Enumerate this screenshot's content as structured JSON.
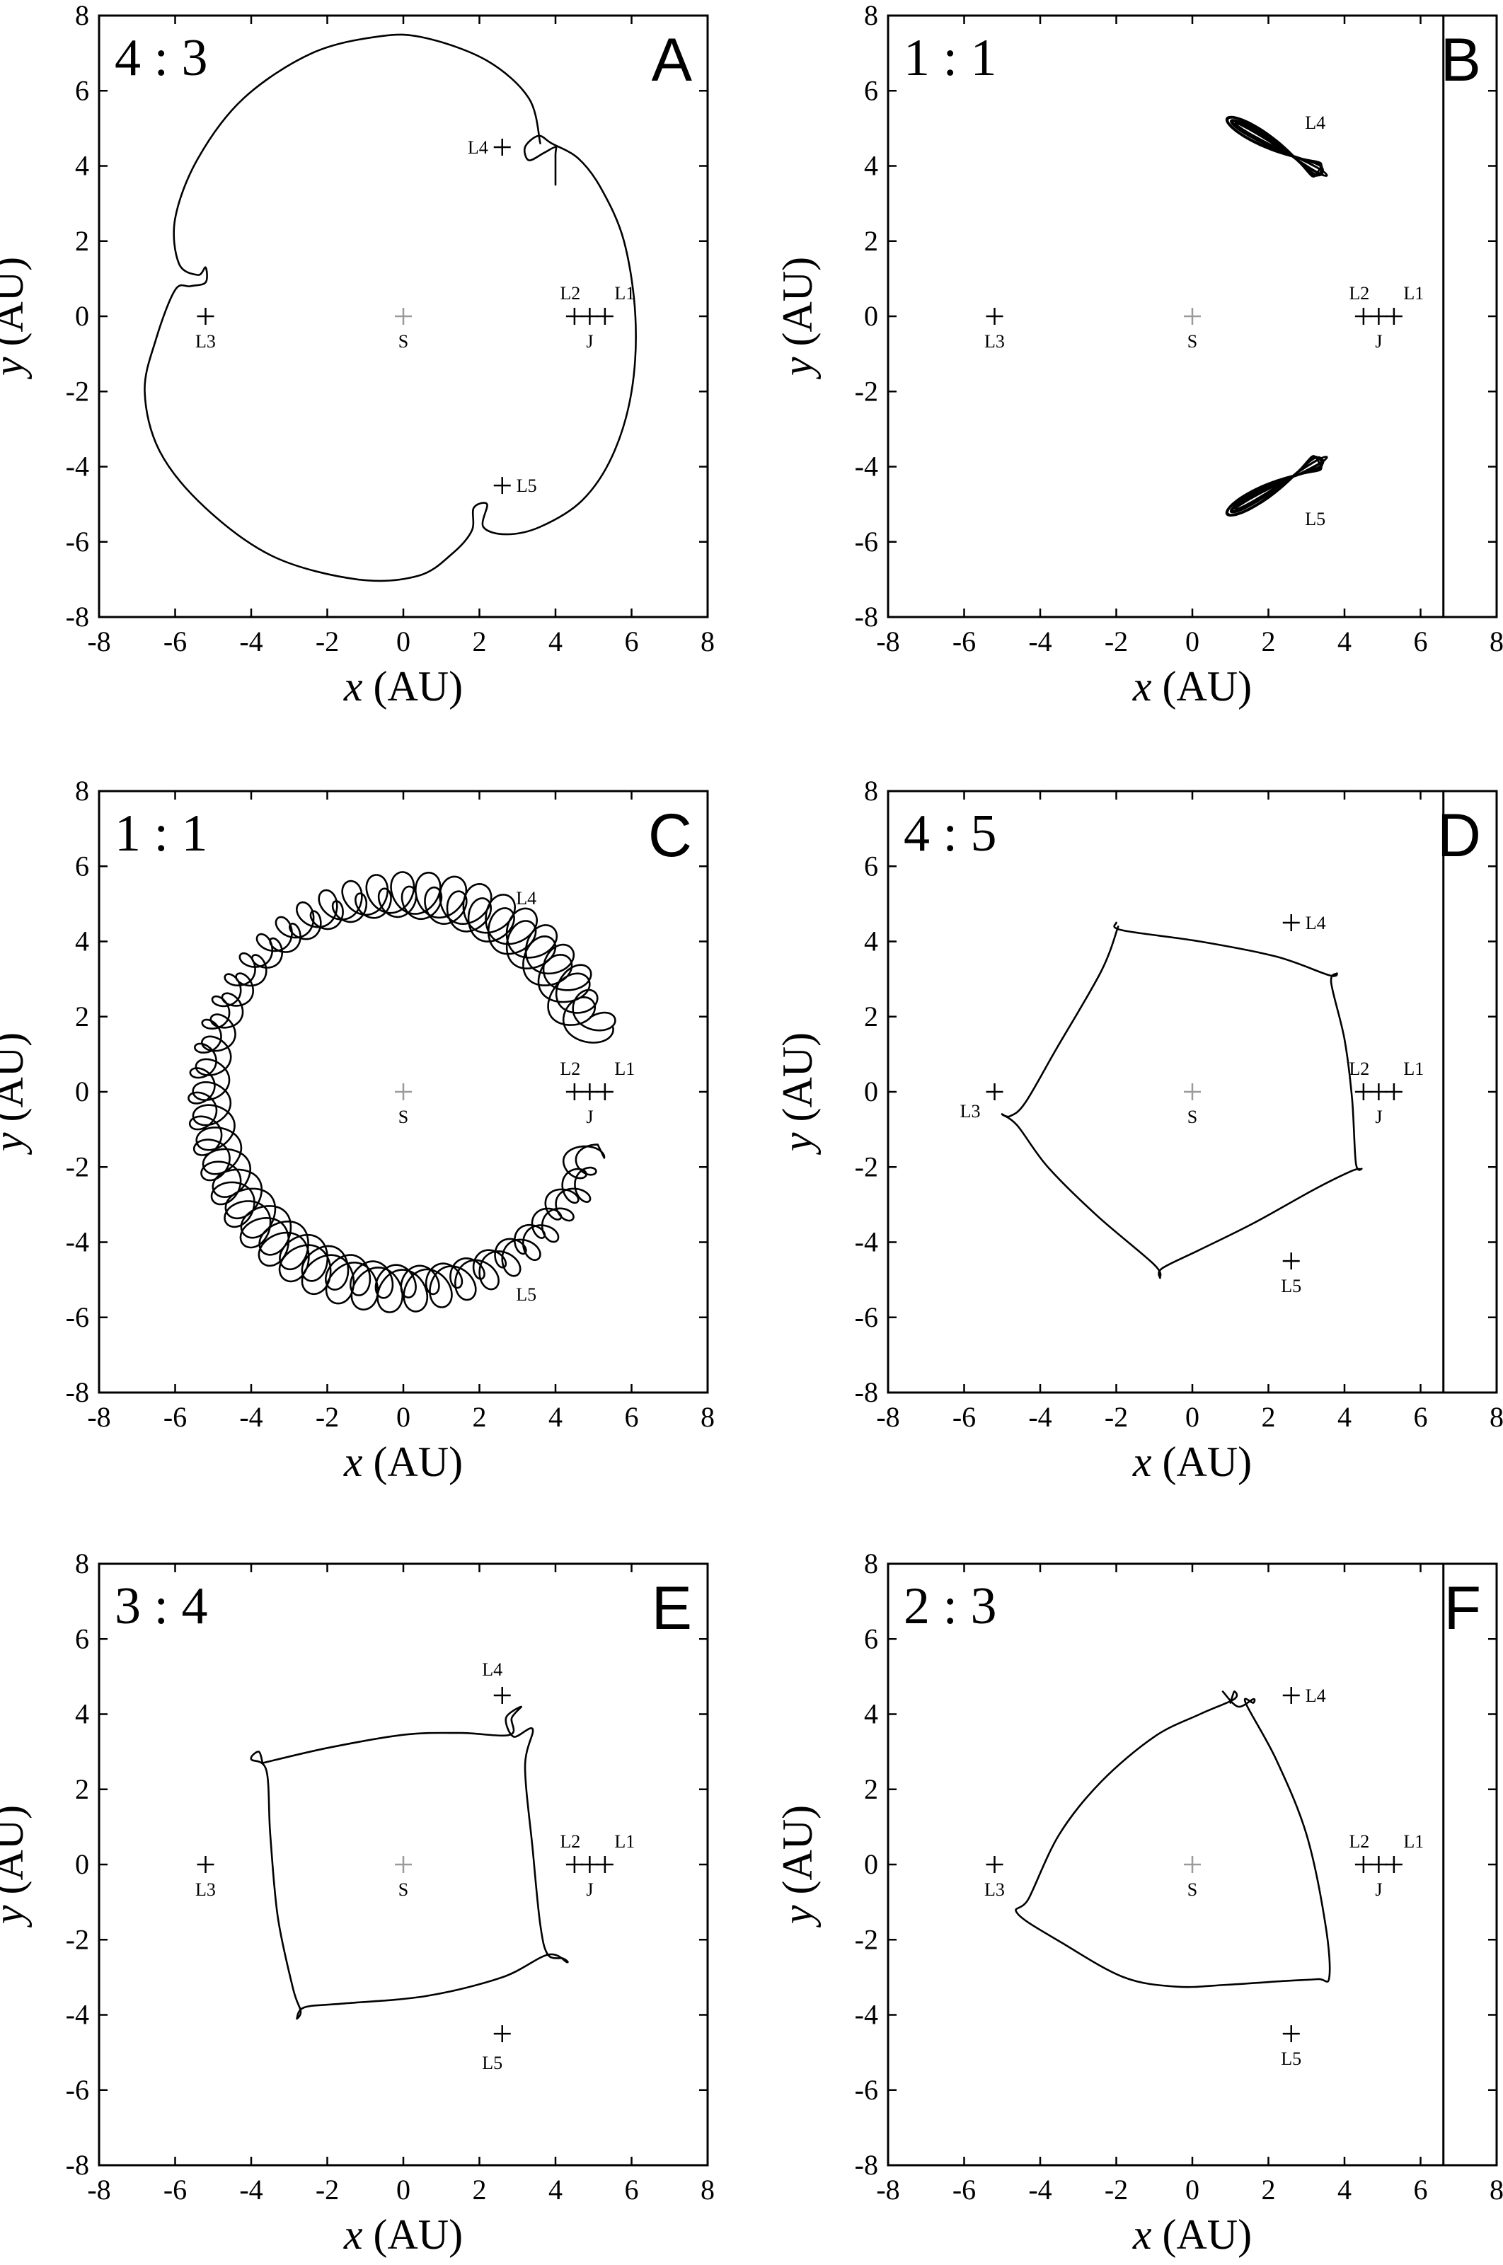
{
  "chart_data": [
    {
      "type": "scatter",
      "panel": "A",
      "ratio": "4 : 3",
      "xlabel_var": "x",
      "xlabel_unit": "(AU)",
      "ylabel_var": "y",
      "ylabel_unit": "(AU)",
      "xlim": [
        -8,
        8
      ],
      "ylim": [
        -8,
        8
      ],
      "ticks": [
        "-8",
        "-6",
        "-4",
        "-2",
        "0",
        "2",
        "4",
        "6",
        "8"
      ],
      "points": [
        {
          "name": "L4",
          "x": 2.6,
          "y": 4.5,
          "label_pos": "left"
        },
        {
          "name": "L5",
          "x": 2.6,
          "y": -4.5,
          "label_pos": "right"
        },
        {
          "name": "L3",
          "x": -5.2,
          "y": 0,
          "label_pos": "below"
        },
        {
          "name": "S",
          "x": 0,
          "y": 0,
          "label_pos": "below",
          "grey": true
        },
        {
          "name": "L2",
          "x": 4.5,
          "y": 0,
          "label_pos": "above"
        },
        {
          "name": "J",
          "x": 4.9,
          "y": 0,
          "label_pos": "below"
        },
        {
          "name": "L1",
          "x": 5.3,
          "y": 0,
          "label_pos": "above"
        }
      ],
      "vline": null,
      "orbit": {
        "kind": "polyline",
        "points": [
          [
            3.6,
            4.6
          ],
          [
            3.3,
            5.8
          ],
          [
            2.2,
            6.8
          ],
          [
            0.6,
            7.4
          ],
          [
            -0.6,
            7.45
          ],
          [
            -2.4,
            7.0
          ],
          [
            -4.2,
            5.8
          ],
          [
            -5.4,
            4.2
          ],
          [
            -6.0,
            2.6
          ],
          [
            -5.9,
            1.4
          ],
          [
            -5.4,
            1.1
          ],
          [
            -5.2,
            1.3
          ],
          [
            -5.2,
            0.9
          ],
          [
            -5.6,
            0.8
          ],
          [
            -6.0,
            0.7
          ],
          [
            -6.5,
            -0.6
          ],
          [
            -6.8,
            -2.0
          ],
          [
            -6.4,
            -3.6
          ],
          [
            -5.2,
            -5.1
          ],
          [
            -3.4,
            -6.4
          ],
          [
            -1.2,
            -7.0
          ],
          [
            0.4,
            -6.9
          ],
          [
            1.3,
            -6.3
          ],
          [
            1.8,
            -5.7
          ],
          [
            1.85,
            -5.1
          ],
          [
            2.2,
            -5.0
          ],
          [
            2.1,
            -5.6
          ],
          [
            2.7,
            -5.8
          ],
          [
            3.6,
            -5.6
          ],
          [
            4.7,
            -4.9
          ],
          [
            5.5,
            -3.7
          ],
          [
            6.0,
            -2.0
          ],
          [
            6.1,
            0
          ],
          [
            5.8,
            2.0
          ],
          [
            5.2,
            3.4
          ],
          [
            4.6,
            4.2
          ],
          [
            3.9,
            4.6
          ],
          [
            3.55,
            4.8
          ],
          [
            3.2,
            4.5
          ],
          [
            3.3,
            4.15
          ],
          [
            3.7,
            4.35
          ],
          [
            4.0,
            4.5
          ],
          [
            4.0,
            4.3
          ],
          [
            4.0,
            3.5
          ]
        ]
      }
    },
    {
      "type": "scatter",
      "panel": "B",
      "ratio": "1 : 1",
      "xlabel_var": "x",
      "xlabel_unit": "(AU)",
      "ylabel_var": "y",
      "ylabel_unit": "(AU)",
      "xlim": [
        -8,
        8
      ],
      "ylim": [
        -8,
        8
      ],
      "ticks": [
        "-8",
        "-6",
        "-4",
        "-2",
        "0",
        "2",
        "4",
        "6",
        "8"
      ],
      "points": [
        {
          "name": "L4",
          "x": 2.6,
          "y": 4.5,
          "label_pos": "above-only",
          "nocross": true
        },
        {
          "name": "L5",
          "x": 2.6,
          "y": -4.5,
          "label_pos": "below-only",
          "nocross": true
        },
        {
          "name": "L3",
          "x": -5.2,
          "y": 0,
          "label_pos": "below"
        },
        {
          "name": "S",
          "x": 0,
          "y": 0,
          "label_pos": "below",
          "grey": true
        },
        {
          "name": "L2",
          "x": 4.5,
          "y": 0,
          "label_pos": "above"
        },
        {
          "name": "J",
          "x": 4.9,
          "y": 0,
          "label_pos": "below"
        },
        {
          "name": "L1",
          "x": 5.3,
          "y": 0,
          "label_pos": "above"
        }
      ],
      "vline": 6.6,
      "orbit": {
        "kind": "tadpoles",
        "centers": [
          [
            2.4,
            4.4
          ],
          [
            2.4,
            -4.4
          ]
        ],
        "length": 2.8,
        "width": 0.38,
        "angles": [
          -30,
          30
        ],
        "loops": 14
      }
    },
    {
      "type": "scatter",
      "panel": "C",
      "ratio": "1 : 1",
      "xlabel_var": "x",
      "xlabel_unit": "(AU)",
      "ylabel_var": "y",
      "ylabel_unit": "(AU)",
      "xlim": [
        -8,
        8
      ],
      "ylim": [
        -8,
        8
      ],
      "ticks": [
        "-8",
        "-6",
        "-4",
        "-2",
        "0",
        "2",
        "4",
        "6",
        "8"
      ],
      "points": [
        {
          "name": "L4",
          "x": 2.6,
          "y": 4.5,
          "label_pos": "above-only",
          "nocross": true
        },
        {
          "name": "L5",
          "x": 2.6,
          "y": -4.5,
          "label_pos": "below-only",
          "nocross": true
        },
        {
          "name": "S",
          "x": 0,
          "y": 0,
          "label_pos": "below",
          "grey": true
        },
        {
          "name": "L2",
          "x": 4.5,
          "y": 0,
          "label_pos": "above"
        },
        {
          "name": "J",
          "x": 4.9,
          "y": 0,
          "label_pos": "below"
        },
        {
          "name": "L1",
          "x": 5.3,
          "y": 0,
          "label_pos": "above"
        }
      ],
      "vline": null,
      "orbit": {
        "kind": "horseshoe",
        "radius": 5.2,
        "start_deg": 18,
        "end_deg": 342,
        "loops": 46
      }
    },
    {
      "type": "scatter",
      "panel": "D",
      "ratio": "4 : 5",
      "xlabel_var": "x",
      "xlabel_unit": "(AU)",
      "ylabel_var": "y",
      "ylabel_unit": "(AU)",
      "xlim": [
        -8,
        8
      ],
      "ylim": [
        -8,
        8
      ],
      "ticks": [
        "-8",
        "-6",
        "-4",
        "-2",
        "0",
        "2",
        "4",
        "6",
        "8"
      ],
      "points": [
        {
          "name": "L4",
          "x": 2.6,
          "y": 4.5,
          "label_pos": "right"
        },
        {
          "name": "L5",
          "x": 2.6,
          "y": -4.5,
          "label_pos": "below"
        },
        {
          "name": "L3",
          "x": -5.2,
          "y": 0,
          "label_pos": "left-below"
        },
        {
          "name": "S",
          "x": 0,
          "y": 0,
          "label_pos": "below",
          "grey": true
        },
        {
          "name": "L2",
          "x": 4.5,
          "y": 0,
          "label_pos": "above"
        },
        {
          "name": "J",
          "x": 4.9,
          "y": 0,
          "label_pos": "below"
        },
        {
          "name": "L1",
          "x": 5.3,
          "y": 0,
          "label_pos": "above"
        }
      ],
      "vline": 6.6,
      "orbit": {
        "kind": "polyline",
        "points": [
          [
            -2.0,
            4.5
          ],
          [
            -1.85,
            4.3
          ],
          [
            0.2,
            4.0
          ],
          [
            2.2,
            3.6
          ],
          [
            3.6,
            3.1
          ],
          [
            3.8,
            3.15
          ],
          [
            3.65,
            2.9
          ],
          [
            4.0,
            1.4
          ],
          [
            4.2,
            -0.2
          ],
          [
            4.3,
            -1.9
          ],
          [
            4.45,
            -2.05
          ],
          [
            4.2,
            -2.1
          ],
          [
            3.2,
            -2.6
          ],
          [
            1.6,
            -3.5
          ],
          [
            0.2,
            -4.2
          ],
          [
            -0.8,
            -4.7
          ],
          [
            -0.85,
            -4.95
          ],
          [
            -1.0,
            -4.6
          ],
          [
            -2.5,
            -3.3
          ],
          [
            -3.8,
            -2.0
          ],
          [
            -4.6,
            -0.9
          ],
          [
            -5.0,
            -0.6
          ],
          [
            -4.8,
            -0.65
          ],
          [
            -4.4,
            -0.3
          ],
          [
            -3.6,
            1.1
          ],
          [
            -2.4,
            3.2
          ],
          [
            -1.95,
            4.4
          ]
        ]
      }
    },
    {
      "type": "scatter",
      "panel": "E",
      "ratio": "3 : 4",
      "xlabel_var": "x",
      "xlabel_unit": "(AU)",
      "ylabel_var": "y",
      "ylabel_unit": "(AU)",
      "xlim": [
        -8,
        8
      ],
      "ylim": [
        -8,
        8
      ],
      "ticks": [
        "-8",
        "-6",
        "-4",
        "-2",
        "0",
        "2",
        "4",
        "6",
        "8"
      ],
      "points": [
        {
          "name": "L4",
          "x": 2.6,
          "y": 4.5,
          "label_pos": "above-left"
        },
        {
          "name": "L5",
          "x": 2.6,
          "y": -4.5,
          "label_pos": "below-left"
        },
        {
          "name": "L3",
          "x": -5.2,
          "y": 0,
          "label_pos": "below"
        },
        {
          "name": "S",
          "x": 0,
          "y": 0,
          "label_pos": "below",
          "grey": true
        },
        {
          "name": "L2",
          "x": 4.5,
          "y": 0,
          "label_pos": "above"
        },
        {
          "name": "J",
          "x": 4.9,
          "y": 0,
          "label_pos": "below"
        },
        {
          "name": "L1",
          "x": 5.3,
          "y": 0,
          "label_pos": "above"
        }
      ],
      "vline": null,
      "orbit": {
        "kind": "polyline",
        "points": [
          [
            -3.7,
            2.7
          ],
          [
            -2.0,
            3.1
          ],
          [
            0,
            3.45
          ],
          [
            1.5,
            3.5
          ],
          [
            2.8,
            3.45
          ],
          [
            2.85,
            3.9
          ],
          [
            3.1,
            4.2
          ],
          [
            2.7,
            3.9
          ],
          [
            2.9,
            3.4
          ],
          [
            3.4,
            3.6
          ],
          [
            3.2,
            2.6
          ],
          [
            3.4,
            0.4
          ],
          [
            3.6,
            -1.6
          ],
          [
            3.8,
            -2.4
          ],
          [
            4.2,
            -2.5
          ],
          [
            4.3,
            -2.6
          ],
          [
            3.8,
            -2.4
          ],
          [
            2.6,
            -3.0
          ],
          [
            0.6,
            -3.5
          ],
          [
            -1.6,
            -3.7
          ],
          [
            -2.6,
            -3.8
          ],
          [
            -2.8,
            -4.1
          ],
          [
            -2.7,
            -3.9
          ],
          [
            -2.9,
            -3.3
          ],
          [
            -3.3,
            -1.4
          ],
          [
            -3.5,
            0.8
          ],
          [
            -3.6,
            2.5
          ],
          [
            -4.0,
            2.8
          ],
          [
            -3.8,
            3.0
          ],
          [
            -3.7,
            2.7
          ]
        ]
      }
    },
    {
      "type": "scatter",
      "panel": "F",
      "ratio": "2 : 3",
      "xlabel_var": "x",
      "xlabel_unit": "(AU)",
      "ylabel_var": "y",
      "ylabel_unit": "(AU)",
      "xlim": [
        -8,
        8
      ],
      "ylim": [
        -8,
        8
      ],
      "ticks": [
        "-8",
        "-6",
        "-4",
        "-2",
        "0",
        "2",
        "4",
        "6",
        "8"
      ],
      "points": [
        {
          "name": "L4",
          "x": 2.6,
          "y": 4.5,
          "label_pos": "right"
        },
        {
          "name": "L5",
          "x": 2.6,
          "y": -4.5,
          "label_pos": "below"
        },
        {
          "name": "L3",
          "x": -5.2,
          "y": 0,
          "label_pos": "below"
        },
        {
          "name": "S",
          "x": 0,
          "y": 0,
          "label_pos": "below",
          "grey": true
        },
        {
          "name": "L2",
          "x": 4.5,
          "y": 0,
          "label_pos": "above"
        },
        {
          "name": "J",
          "x": 4.9,
          "y": 0,
          "label_pos": "below"
        },
        {
          "name": "L1",
          "x": 5.3,
          "y": 0,
          "label_pos": "above"
        }
      ],
      "vline": 6.6,
      "orbit": {
        "kind": "polyline",
        "points": [
          [
            0.8,
            4.6
          ],
          [
            1.2,
            4.2
          ],
          [
            1.6,
            4.4
          ],
          [
            1.6,
            4.3
          ],
          [
            1.4,
            4.3
          ],
          [
            2.2,
            2.8
          ],
          [
            3.0,
            0.8
          ],
          [
            3.5,
            -1.6
          ],
          [
            3.6,
            -3.0
          ],
          [
            3.3,
            -3.05
          ],
          [
            2.4,
            -3.1
          ],
          [
            0.9,
            -3.2
          ],
          [
            -0.4,
            -3.25
          ],
          [
            -1.8,
            -3.0
          ],
          [
            -3.4,
            -2.1
          ],
          [
            -4.6,
            -1.3
          ],
          [
            -4.3,
            -0.9
          ],
          [
            -3.5,
            0.8
          ],
          [
            -2.4,
            2.2
          ],
          [
            -1.0,
            3.4
          ],
          [
            0.2,
            4.0
          ],
          [
            1.1,
            4.4
          ],
          [
            1.1,
            4.6
          ],
          [
            1.0,
            4.3
          ]
        ]
      }
    }
  ]
}
